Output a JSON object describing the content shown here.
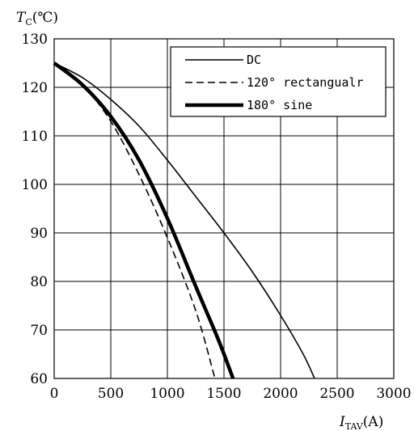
{
  "chart_data": {
    "type": "line",
    "title": "",
    "ylabel": {
      "symbol": "T",
      "subscript": "C",
      "unit": "(℃)"
    },
    "xlabel": {
      "symbol": "I",
      "subscript": "TAV",
      "unit": "(A)"
    },
    "xlim": [
      0,
      3000
    ],
    "ylim": [
      60,
      130
    ],
    "xticks": [
      0,
      500,
      1000,
      1500,
      2000,
      2500,
      3000
    ],
    "yticks": [
      60,
      70,
      80,
      90,
      100,
      110,
      120,
      130
    ],
    "grid": true,
    "legend_position": "top-right",
    "series": [
      {
        "name": "DC",
        "style": "solid-thin",
        "points": [
          [
            0,
            125
          ],
          [
            250,
            122
          ],
          [
            500,
            117.5
          ],
          [
            750,
            112
          ],
          [
            1000,
            105
          ],
          [
            1250,
            97.5
          ],
          [
            1500,
            90
          ],
          [
            1750,
            82
          ],
          [
            2000,
            73
          ],
          [
            2200,
            65
          ],
          [
            2300,
            60
          ]
        ]
      },
      {
        "name": "120° rectangualr",
        "style": "dashed",
        "points": [
          [
            0,
            125
          ],
          [
            250,
            120.5
          ],
          [
            500,
            113
          ],
          [
            750,
            102
          ],
          [
            1000,
            89
          ],
          [
            1250,
            74
          ],
          [
            1420,
            60
          ]
        ]
      },
      {
        "name": "180° sine",
        "style": "solid-thick",
        "points": [
          [
            0,
            125
          ],
          [
            250,
            120.5
          ],
          [
            500,
            114
          ],
          [
            750,
            105
          ],
          [
            1000,
            93
          ],
          [
            1250,
            79
          ],
          [
            1450,
            68
          ],
          [
            1580,
            60
          ]
        ]
      }
    ]
  }
}
